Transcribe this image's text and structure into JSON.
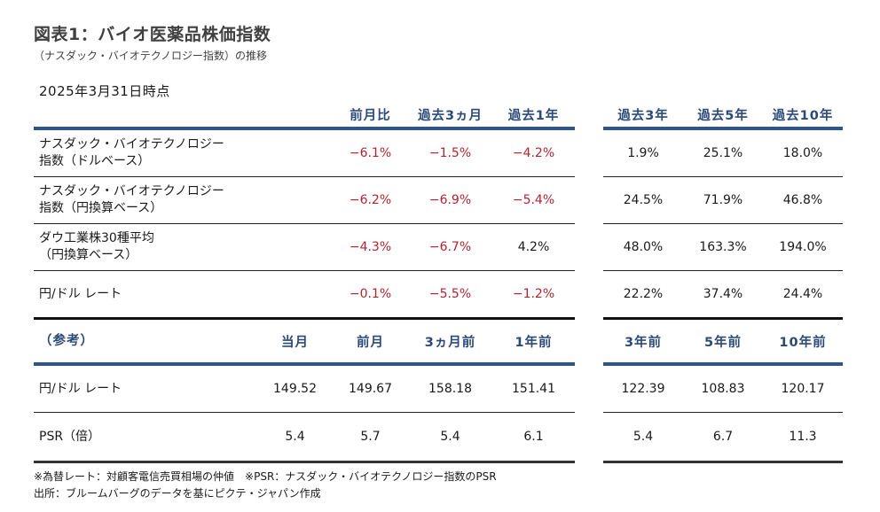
{
  "title": "図表1：バイオ医薬品株価指数",
  "subtitle": "（ナスダック・バイオテクノロジー指数）の推移",
  "as_of": "2025年3月31日時点",
  "colors": {
    "header_text": "#2b4a78",
    "header_rule": "#2e5590",
    "negative": "#b0242f"
  },
  "performance": {
    "headers": [
      "前月比",
      "過去3ヵ月",
      "過去1年",
      "過去3年",
      "過去5年",
      "過去10年"
    ],
    "rows": [
      {
        "label1": "ナスダック・バイオテクノロジー",
        "label2": "指数（ドルベース）",
        "values": [
          "−6.1%",
          "−1.5%",
          "−4.2%",
          "1.9%",
          "25.1%",
          "18.0%"
        ]
      },
      {
        "label1": "ナスダック・バイオテクノロジー",
        "label2": "指数（円換算ベース）",
        "values": [
          "−6.2%",
          "−6.9%",
          "−5.4%",
          "24.5%",
          "71.9%",
          "46.8%"
        ]
      },
      {
        "label1": "ダウ工業株30種平均",
        "label2": "（円換算ベース）",
        "values": [
          "−4.3%",
          "−6.7%",
          "4.2%",
          "48.0%",
          "163.3%",
          "194.0%"
        ]
      },
      {
        "label1": "円/ドル レート",
        "label2": "",
        "values": [
          "−0.1%",
          "−5.5%",
          "−1.2%",
          "22.2%",
          "37.4%",
          "24.4%"
        ]
      }
    ]
  },
  "reference": {
    "label": "（参考）",
    "headers": [
      "当月",
      "前月",
      "3ヵ月前",
      "1年前",
      "3年前",
      "5年前",
      "10年前"
    ],
    "rows": [
      {
        "label": "円/ドル レート",
        "values": [
          "149.52",
          "149.67",
          "158.18",
          "151.41",
          "122.39",
          "108.83",
          "120.17"
        ]
      },
      {
        "label": "PSR（倍）",
        "values": [
          "5.4",
          "5.7",
          "5.4",
          "6.1",
          "5.4",
          "6.7",
          "11.3"
        ]
      }
    ]
  },
  "notes": [
    "※為替レート：対顧客電信売買相場の仲値　※PSR：ナスダック・バイオテクノロジー指数のPSR",
    "出所：ブルームバーグのデータを基にピクテ・ジャパン作成"
  ]
}
